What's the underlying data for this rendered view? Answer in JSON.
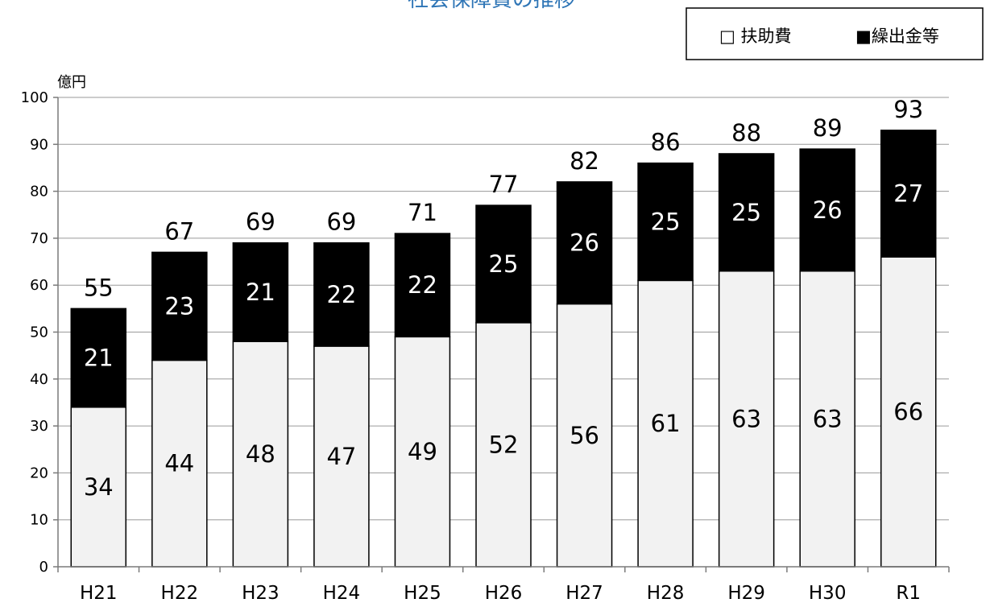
{
  "chart_data": {
    "type": "bar",
    "stacked": true,
    "title": "社会保障費の推移",
    "unit": "億円",
    "categories": [
      "H21",
      "H22",
      "H23",
      "H24",
      "H25",
      "H26",
      "H27",
      "H28",
      "H29",
      "H30",
      "R1"
    ],
    "series": [
      {
        "name": "扶助費",
        "color": "#f2f2f2",
        "values": [
          34,
          44,
          48,
          47,
          49,
          52,
          56,
          61,
          63,
          63,
          66
        ]
      },
      {
        "name": "繰出金等",
        "color": "#000000",
        "values": [
          21,
          23,
          21,
          22,
          22,
          25,
          26,
          25,
          25,
          26,
          27
        ]
      }
    ],
    "totals": [
      55,
      67,
      69,
      69,
      71,
      77,
      82,
      86,
      88,
      89,
      93
    ],
    "ylim": [
      0,
      100
    ],
    "yticks": [
      0,
      10,
      20,
      30,
      40,
      50,
      60,
      70,
      80,
      90,
      100
    ],
    "grid": true,
    "legend": {
      "position": "top-right",
      "items": [
        {
          "marker": "□",
          "label": "扶助費"
        },
        {
          "marker": "■",
          "label": "繰出金等"
        }
      ]
    }
  }
}
